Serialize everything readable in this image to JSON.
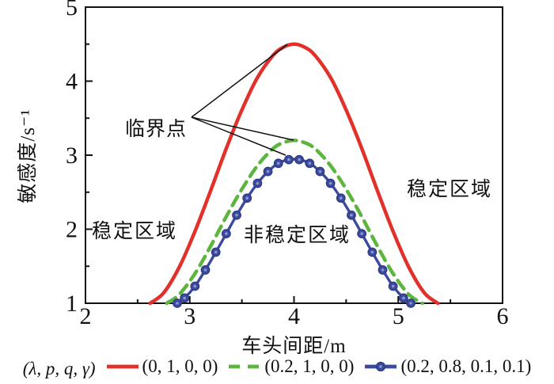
{
  "figure": {
    "background": "#ffffff"
  },
  "axes": {
    "x_label": "车头间距/m",
    "y_label": "敏感度/s⁻¹",
    "x_ticks": [
      "2",
      "3",
      "4",
      "5",
      "6"
    ],
    "y_ticks": [
      "1",
      "2",
      "3",
      "4",
      "5"
    ]
  },
  "annotations": {
    "critical_point_label": "临界点",
    "stable_left": "稳定区域",
    "stable_right": "稳定区域",
    "unstable": "非稳定区域"
  },
  "legend": {
    "prefix": "(λ, p, q, γ)",
    "items": [
      {
        "label": "(0, 1, 0, 0)",
        "color": "#e1312a",
        "style": "solid"
      },
      {
        "label": "(0.2, 1, 0, 0)",
        "color": "#5cb53f",
        "style": "dashed"
      },
      {
        "label": "(0.2, 0.8, 0.1, 0.1)",
        "color": "#3b4a9e",
        "style": "solid-marker"
      }
    ]
  },
  "chart_data": {
    "type": "line",
    "title": "",
    "xlabel": "车头间距/m",
    "ylabel": "敏感度/s⁻¹",
    "xlim": [
      2,
      6
    ],
    "ylim": [
      1,
      5
    ],
    "x_major_ticks": [
      2,
      3,
      4,
      5,
      6
    ],
    "x_minor_ticks": [
      2.5,
      3.5,
      4.5,
      5.5
    ],
    "y_major_ticks": [
      1,
      2,
      3,
      4,
      5
    ],
    "y_minor_ticks": [
      1.5,
      2.5,
      3.5,
      4.5
    ],
    "grid": false,
    "legend_position": "bottom",
    "series": [
      {
        "name": "(0, 1, 0, 0)",
        "color": "#e1312a",
        "style": "solid",
        "width": 4.5,
        "peak": [
          4.0,
          4.5
        ],
        "points": [
          [
            2.62,
            1.0
          ],
          [
            2.75,
            1.14
          ],
          [
            2.9,
            1.49
          ],
          [
            3.05,
            1.97
          ],
          [
            3.2,
            2.52
          ],
          [
            3.35,
            3.09
          ],
          [
            3.5,
            3.61
          ],
          [
            3.65,
            4.05
          ],
          [
            3.8,
            4.35
          ],
          [
            3.9,
            4.46
          ],
          [
            4.0,
            4.5
          ],
          [
            4.1,
            4.46
          ],
          [
            4.2,
            4.35
          ],
          [
            4.35,
            4.05
          ],
          [
            4.5,
            3.61
          ],
          [
            4.65,
            3.09
          ],
          [
            4.8,
            2.52
          ],
          [
            4.95,
            1.97
          ],
          [
            5.1,
            1.49
          ],
          [
            5.25,
            1.14
          ],
          [
            5.38,
            1.0
          ]
        ]
      },
      {
        "name": "(0.2, 1, 0, 0)",
        "color": "#5cb53f",
        "style": "dashed",
        "width": 4.5,
        "peak": [
          4.0,
          3.2
        ],
        "points": [
          [
            2.78,
            1.0
          ],
          [
            2.9,
            1.12
          ],
          [
            3.05,
            1.4
          ],
          [
            3.2,
            1.77
          ],
          [
            3.35,
            2.17
          ],
          [
            3.5,
            2.54
          ],
          [
            3.65,
            2.86
          ],
          [
            3.8,
            3.09
          ],
          [
            3.9,
            3.17
          ],
          [
            4.0,
            3.2
          ],
          [
            4.1,
            3.17
          ],
          [
            4.2,
            3.09
          ],
          [
            4.35,
            2.86
          ],
          [
            4.5,
            2.54
          ],
          [
            4.65,
            2.17
          ],
          [
            4.8,
            1.77
          ],
          [
            4.95,
            1.4
          ],
          [
            5.1,
            1.12
          ],
          [
            5.23,
            1.0
          ]
        ]
      },
      {
        "name": "(0.2, 0.8, 0.1, 0.1)",
        "color": "#3b4a9e",
        "style": "solid",
        "width": 3.4,
        "marker": "circle",
        "marker_edge": "#2c3a82",
        "marker_dot": "#8d96c9",
        "peak": [
          4.0,
          2.95
        ],
        "points": [
          [
            2.88,
            1.0
          ],
          [
            2.95,
            1.07
          ],
          [
            3.05,
            1.23
          ],
          [
            3.15,
            1.45
          ],
          [
            3.25,
            1.69
          ],
          [
            3.35,
            1.94
          ],
          [
            3.45,
            2.19
          ],
          [
            3.55,
            2.42
          ],
          [
            3.65,
            2.62
          ],
          [
            3.75,
            2.78
          ],
          [
            3.85,
            2.89
          ],
          [
            3.95,
            2.94
          ],
          [
            4.05,
            2.94
          ],
          [
            4.15,
            2.89
          ],
          [
            4.25,
            2.78
          ],
          [
            4.35,
            2.62
          ],
          [
            4.45,
            2.42
          ],
          [
            4.55,
            2.19
          ],
          [
            4.65,
            1.94
          ],
          [
            4.75,
            1.69
          ],
          [
            4.85,
            1.45
          ],
          [
            4.95,
            1.23
          ],
          [
            5.05,
            1.07
          ],
          [
            5.12,
            1.0
          ]
        ]
      }
    ],
    "annotation": {
      "label": "临界点",
      "vertex": [
        3.017,
        3.513
      ],
      "targets": [
        [
          3.936,
          4.497
        ],
        [
          3.996,
          3.203
        ],
        [
          3.92,
          3.0
        ]
      ]
    }
  }
}
